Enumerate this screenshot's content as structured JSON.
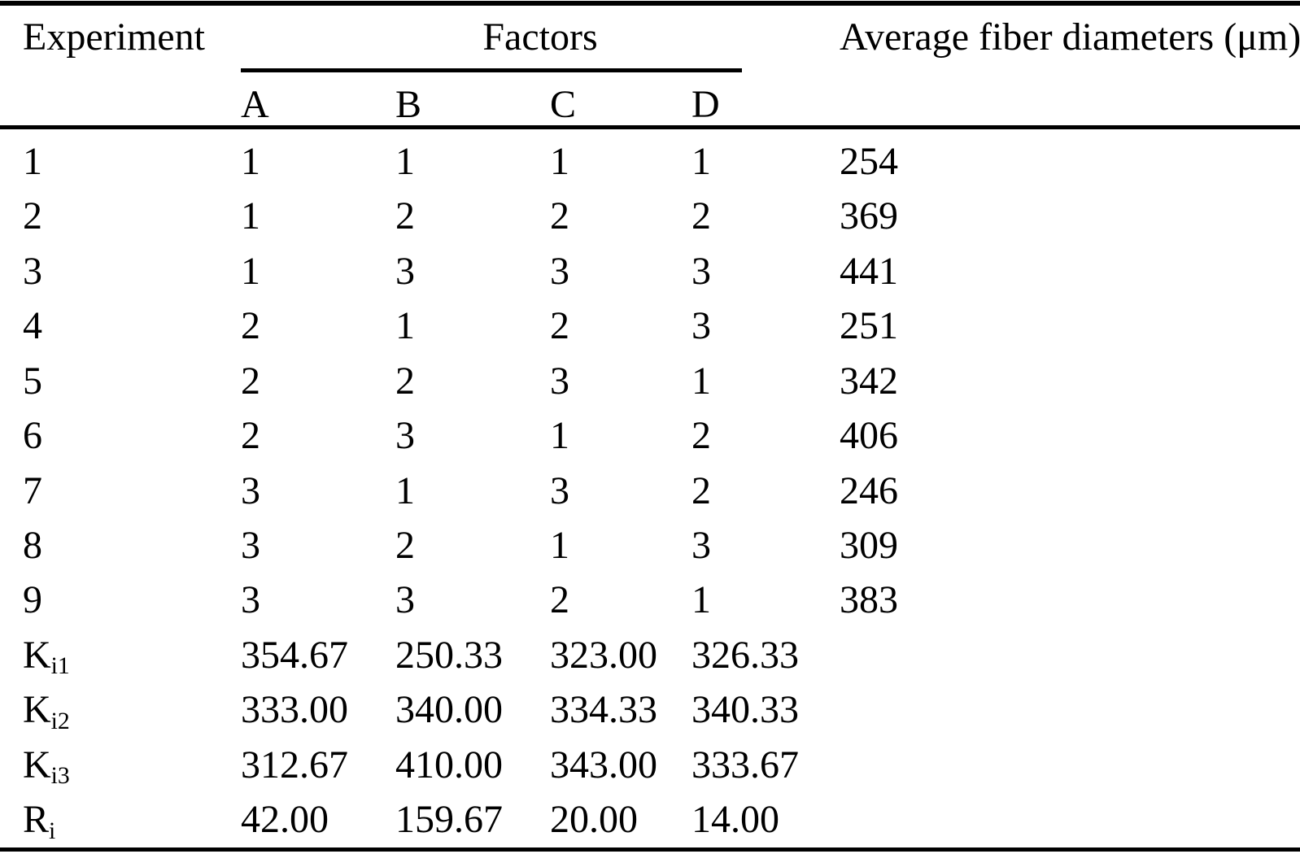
{
  "page": {
    "background_color": "#ffffff",
    "text_color": "#000000"
  },
  "table": {
    "header": {
      "experiment_label": "Experiment",
      "factors_label": "Factors",
      "avg_label": "Average fiber diameters (μm)",
      "factor_columns": [
        "A",
        "B",
        "C",
        "D"
      ]
    },
    "rows": [
      {
        "exp": "1",
        "a": "1",
        "b": "1",
        "c": "1",
        "d": "1",
        "avg": "254"
      },
      {
        "exp": "2",
        "a": "1",
        "b": "2",
        "c": "2",
        "d": "2",
        "avg": "369"
      },
      {
        "exp": "3",
        "a": "1",
        "b": "3",
        "c": "3",
        "d": "3",
        "avg": "441"
      },
      {
        "exp": "4",
        "a": "2",
        "b": "1",
        "c": "2",
        "d": "3",
        "avg": "251"
      },
      {
        "exp": "5",
        "a": "2",
        "b": "2",
        "c": "3",
        "d": "1",
        "avg": "342"
      },
      {
        "exp": "6",
        "a": "2",
        "b": "3",
        "c": "1",
        "d": "2",
        "avg": "406"
      },
      {
        "exp": "7",
        "a": "3",
        "b": "1",
        "c": "3",
        "d": "2",
        "avg": "246"
      },
      {
        "exp": "8",
        "a": "3",
        "b": "2",
        "c": "1",
        "d": "3",
        "avg": "309"
      },
      {
        "exp": "9",
        "a": "3",
        "b": "3",
        "c": "2",
        "d": "1",
        "avg": "383"
      }
    ],
    "summary_rows": [
      {
        "label_base": "K",
        "label_sub": "i1",
        "a": "354.67",
        "b": "250.33",
        "c": "323.00",
        "d": "326.33",
        "avg": ""
      },
      {
        "label_base": "K",
        "label_sub": "i2",
        "a": "333.00",
        "b": "340.00",
        "c": "334.33",
        "d": "340.33",
        "avg": ""
      },
      {
        "label_base": "K",
        "label_sub": "i3",
        "a": "312.67",
        "b": "410.00",
        "c": "343.00",
        "d": "333.67",
        "avg": ""
      },
      {
        "label_base": "R",
        "label_sub": "i",
        "a": "42.00",
        "b": "159.67",
        "c": "20.00",
        "d": "14.00",
        "avg": ""
      }
    ]
  }
}
